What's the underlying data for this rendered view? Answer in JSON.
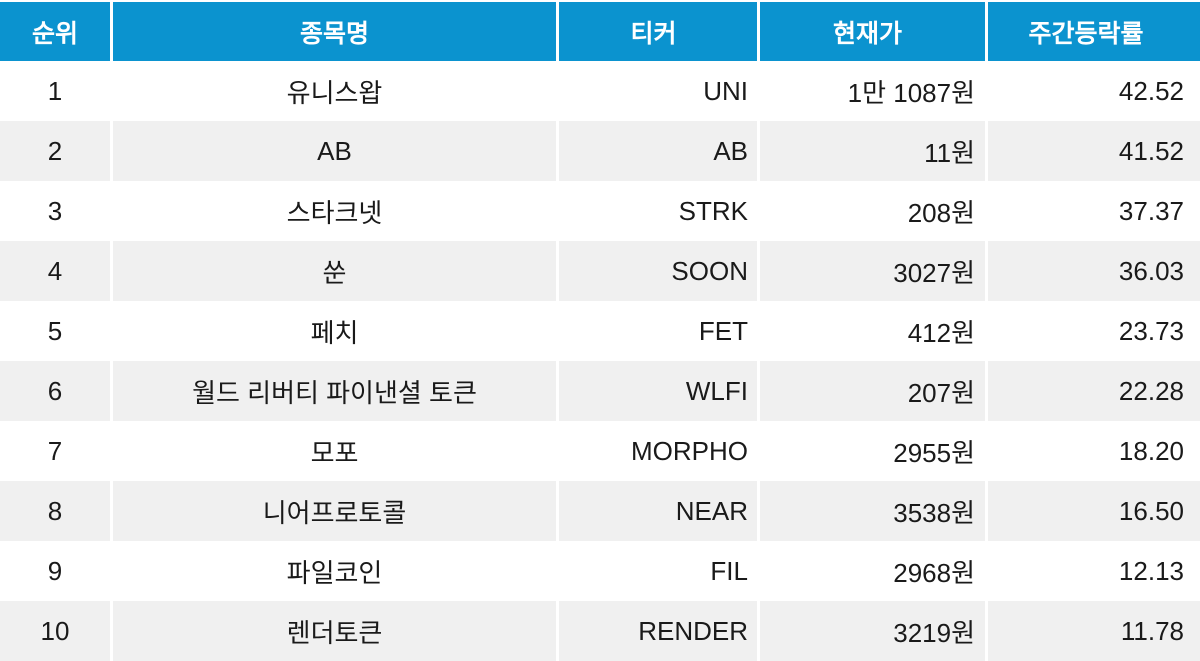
{
  "chart_data": {
    "type": "table",
    "title": "",
    "columns": [
      "순위",
      "종목명",
      "티커",
      "현재가",
      "주간등락률"
    ],
    "rows": [
      [
        "1",
        "유니스왑",
        "UNI",
        "1만 1087원",
        "42.52"
      ],
      [
        "2",
        "AB",
        "AB",
        "11원",
        "41.52"
      ],
      [
        "3",
        "스타크넷",
        "STRK",
        "208원",
        "37.37"
      ],
      [
        "4",
        "쑨",
        "SOON",
        "3027원",
        "36.03"
      ],
      [
        "5",
        "페치",
        "FET",
        "412원",
        "23.73"
      ],
      [
        "6",
        "월드 리버티 파이낸셜 토큰",
        "WLFI",
        "207원",
        "22.28"
      ],
      [
        "7",
        "모포",
        "MORPHO",
        "2955원",
        "18.20"
      ],
      [
        "8",
        "니어프로토콜",
        "NEAR",
        "3538원",
        "16.50"
      ],
      [
        "9",
        "파일코인",
        "FIL",
        "2968원",
        "12.13"
      ],
      [
        "10",
        "렌더토큰",
        "RENDER",
        "3219원",
        "11.78"
      ]
    ],
    "layout_hints": {
      "header_position": "top",
      "grid": "alternating-row-stripes",
      "value_columns_alignment": "right",
      "rank_and_name_alignment": "center"
    }
  },
  "colors": {
    "header_bg": "#0b93cf",
    "header_text": "#ffffff",
    "row_bg": "#ffffff",
    "row_alt_bg": "#f0f0f0",
    "body_text": "#1a1a1a",
    "separator": "#ffffff"
  }
}
